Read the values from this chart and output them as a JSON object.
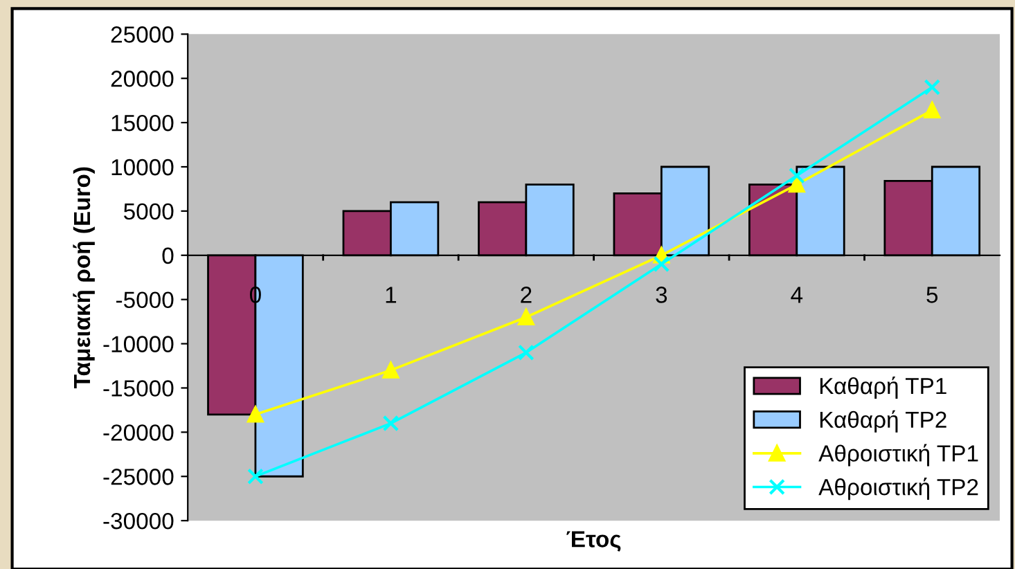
{
  "chart_data": {
    "type": "bar",
    "xlabel": "Έτος",
    "ylabel": "Ταμειακή ροή (Euro)",
    "categories": [
      "0",
      "1",
      "2",
      "3",
      "4",
      "5"
    ],
    "series": [
      {
        "name": "Καθαρή ΤΡ1",
        "color": "#993366",
        "values": [
          -18000,
          5000,
          6000,
          7000,
          8000,
          8400
        ]
      },
      {
        "name": "Καθαρή ΤΡ2",
        "color": "#99ccff",
        "values": [
          -25000,
          6000,
          8000,
          10000,
          10000,
          10000
        ]
      },
      {
        "name": "Αθροιστική ΤΡ1",
        "type": "line",
        "color": "#ffff00",
        "marker": "triangle",
        "values": [
          -18000,
          -13000,
          -7000,
          0,
          8000,
          16400
        ]
      },
      {
        "name": "Αθροιστική ΤΡ2",
        "type": "line",
        "color": "#00ffff",
        "marker": "cross",
        "values": [
          -25000,
          -19000,
          -11000,
          -1000,
          9000,
          19000
        ]
      }
    ],
    "ylim": [
      -30000,
      25000
    ],
    "yticks": [
      -30000,
      -25000,
      -20000,
      -15000,
      -10000,
      -5000,
      0,
      5000,
      10000,
      15000,
      20000,
      25000
    ],
    "grid": false,
    "legend": "bottom right"
  }
}
